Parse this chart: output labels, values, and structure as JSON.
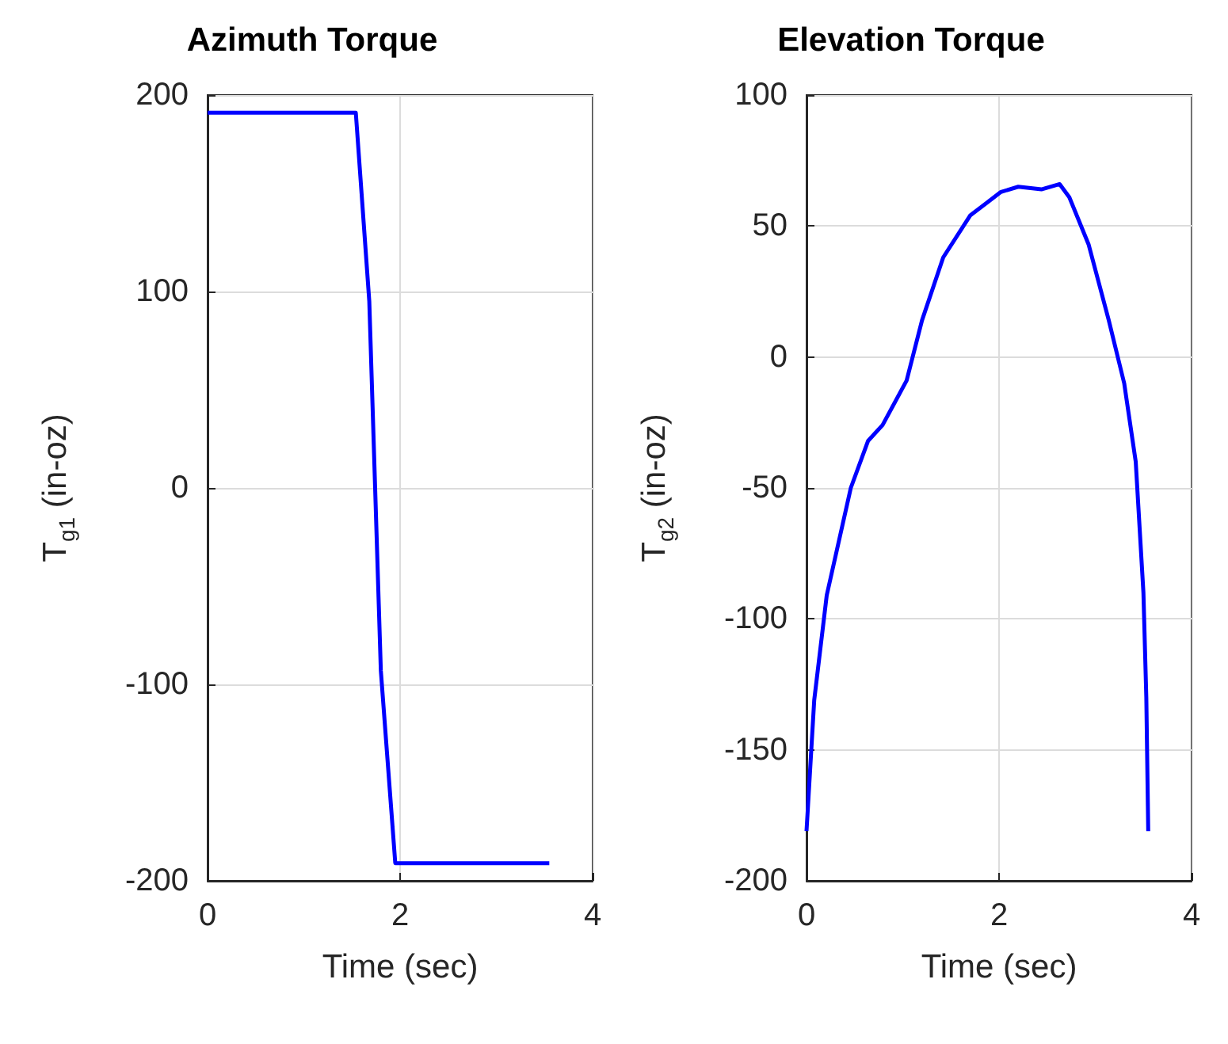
{
  "chart_data": [
    {
      "type": "line",
      "title": "Azimuth Torque",
      "xlabel": "Time (sec)",
      "ylabel": "T$_{g1}$ (in-oz)",
      "xlim": [
        0,
        4
      ],
      "xticks": [
        0,
        2,
        4
      ],
      "ylim": [
        -200,
        200
      ],
      "yticks": [
        -200,
        -100,
        0,
        100,
        200
      ],
      "grid": true,
      "marker": "none",
      "line_style": "solid",
      "series": [
        {
          "color": "#0000ff",
          "x": [
            0,
            1.54,
            1.68,
            1.8,
            1.95,
            3.55
          ],
          "values": [
            191,
            191,
            95,
            -93,
            -191,
            -191
          ]
        }
      ]
    },
    {
      "type": "line",
      "title": "Elevation Torque",
      "xlabel": "Time (sec)",
      "ylabel": "T$_{g2}$ (in-oz)",
      "xlim": [
        0,
        4
      ],
      "xticks": [
        0,
        2,
        4
      ],
      "ylim": [
        -200,
        100
      ],
      "yticks": [
        -200,
        -150,
        -100,
        -50,
        0,
        50,
        100
      ],
      "grid": true,
      "marker": "none",
      "line_style": "solid",
      "series": [
        {
          "color": "#0000ff",
          "x": [
            0,
            0.08,
            0.21,
            0.46,
            0.64,
            0.79,
            1.04,
            1.2,
            1.42,
            1.7,
            2.02,
            2.2,
            2.44,
            2.63,
            2.73,
            2.93,
            3.14,
            3.3,
            3.42,
            3.5,
            3.53,
            3.55
          ],
          "values": [
            -181,
            -131,
            -91,
            -50,
            -32,
            -26,
            -9,
            14,
            38,
            54,
            63,
            65,
            64,
            66,
            61,
            43,
            14,
            -10,
            -40,
            -90,
            -130,
            -181
          ]
        }
      ]
    }
  ]
}
